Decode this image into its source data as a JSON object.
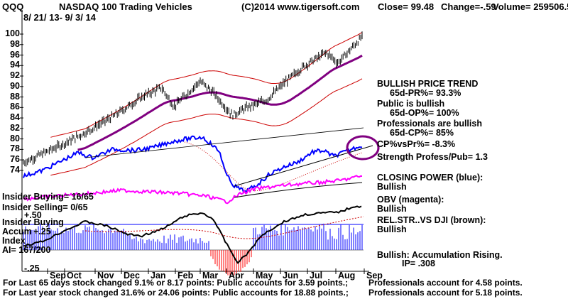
{
  "header": {
    "symbol": "QQQ",
    "title": "NASDAQ 100 Trading Vehicles",
    "copyright": "(C)2014 www.tigersoft.com",
    "close": "Close=  99.48",
    "change": "Change=-.59",
    "volume": "Volume= 259506.56",
    "date_range": "8/ 21/ 13- 9/ 3/ 14"
  },
  "left_labels": {
    "insider_buying_ratio": "Insider Buying= 16/65",
    "insider_selling_ratio": "Insider Selling= 0/65",
    "plus50": "+.50",
    "insider_buying": "Insider Buying",
    "accum": "Accum",
    "index": "Index",
    "plus25": "+.25",
    "ai": "AI= 167/200",
    "minus25": "-.25"
  },
  "right_panel": {
    "trend_title": "BULLISH PRICE TREND",
    "trend_value": "65d-PR%= 93.3%",
    "public_title": "Public is bullish",
    "public_value": "65d-OP%= 100%",
    "prof_title": "Professionals are bullish",
    "prof_value": "65d-CP%= 85%",
    "cp_vs_pr": "CP%vsPr%= -8.3%",
    "strength": "Strength Profess/Pub= 1.3",
    "closing_power": "CLOSING POWER (blue):",
    "closing_power_state": "Bullish",
    "obv": "OBV (magenta):",
    "obv_state": "Bullish",
    "relstr": "REL.STR..VS DJI (brown):",
    "relstr_state": "Bullish",
    "accum_msg": "Bullish: Accumulation Rising.",
    "ip": "IP=  .308"
  },
  "footer": {
    "line1_left": "For Last 65 days stock changed  9.1% or  8.17 points:  Public accounts for  3.59 points.;",
    "line1_right": "Professionals account for  4.58 points.",
    "line2_left": "For Last year stock changed  31.6% or  24.06 points:  Public accounts for  18.88 points.;",
    "line2_right": "Professionals account for  5.18 points."
  },
  "colors": {
    "price": "#000000",
    "closing_power": "#0000ff",
    "obv": "#ff00ff",
    "ma": "#800080",
    "band": "#cc0000",
    "accum_pos": "#0000ff",
    "accum_neg": "#ff0000",
    "relstr": "#000000",
    "circle": "#800080"
  },
  "chart_data": {
    "type": "line",
    "y_axis_ticks": [
      "100",
      "98",
      "96",
      "94",
      "92",
      "90",
      "88",
      "86",
      "84",
      "82",
      "80",
      "78",
      "76",
      "74"
    ],
    "ylim": [
      73,
      101
    ],
    "x_month_labels": [
      "Sep",
      "Oct",
      "Nov",
      "Dec",
      "Jan",
      "Feb",
      "Mar",
      "Apr",
      "May",
      "Jun",
      "Jul",
      "Aug",
      "Sep"
    ],
    "series": [
      {
        "name": "Price",
        "x": [
          "2013-08-21",
          "2013-09-15",
          "2013-10-10",
          "2013-11-01",
          "2013-12-01",
          "2014-01-02",
          "2014-01-22",
          "2014-02-05",
          "2014-03-06",
          "2014-03-20",
          "2014-04-11",
          "2014-04-25",
          "2014-05-20",
          "2014-06-10",
          "2014-07-01",
          "2014-07-25",
          "2014-08-07",
          "2014-09-03"
        ],
        "values": [
          75.5,
          77.5,
          79.5,
          81.5,
          84.5,
          88.2,
          89.8,
          86.2,
          91.0,
          89.0,
          84.5,
          85.8,
          87.5,
          91.0,
          94.0,
          96.5,
          94.5,
          99.48
        ]
      }
    ],
    "closing_power_note": "Closing Power (blue)",
    "obv_note": "OBV (magenta)",
    "accum_note": "Accum Index histogram"
  }
}
